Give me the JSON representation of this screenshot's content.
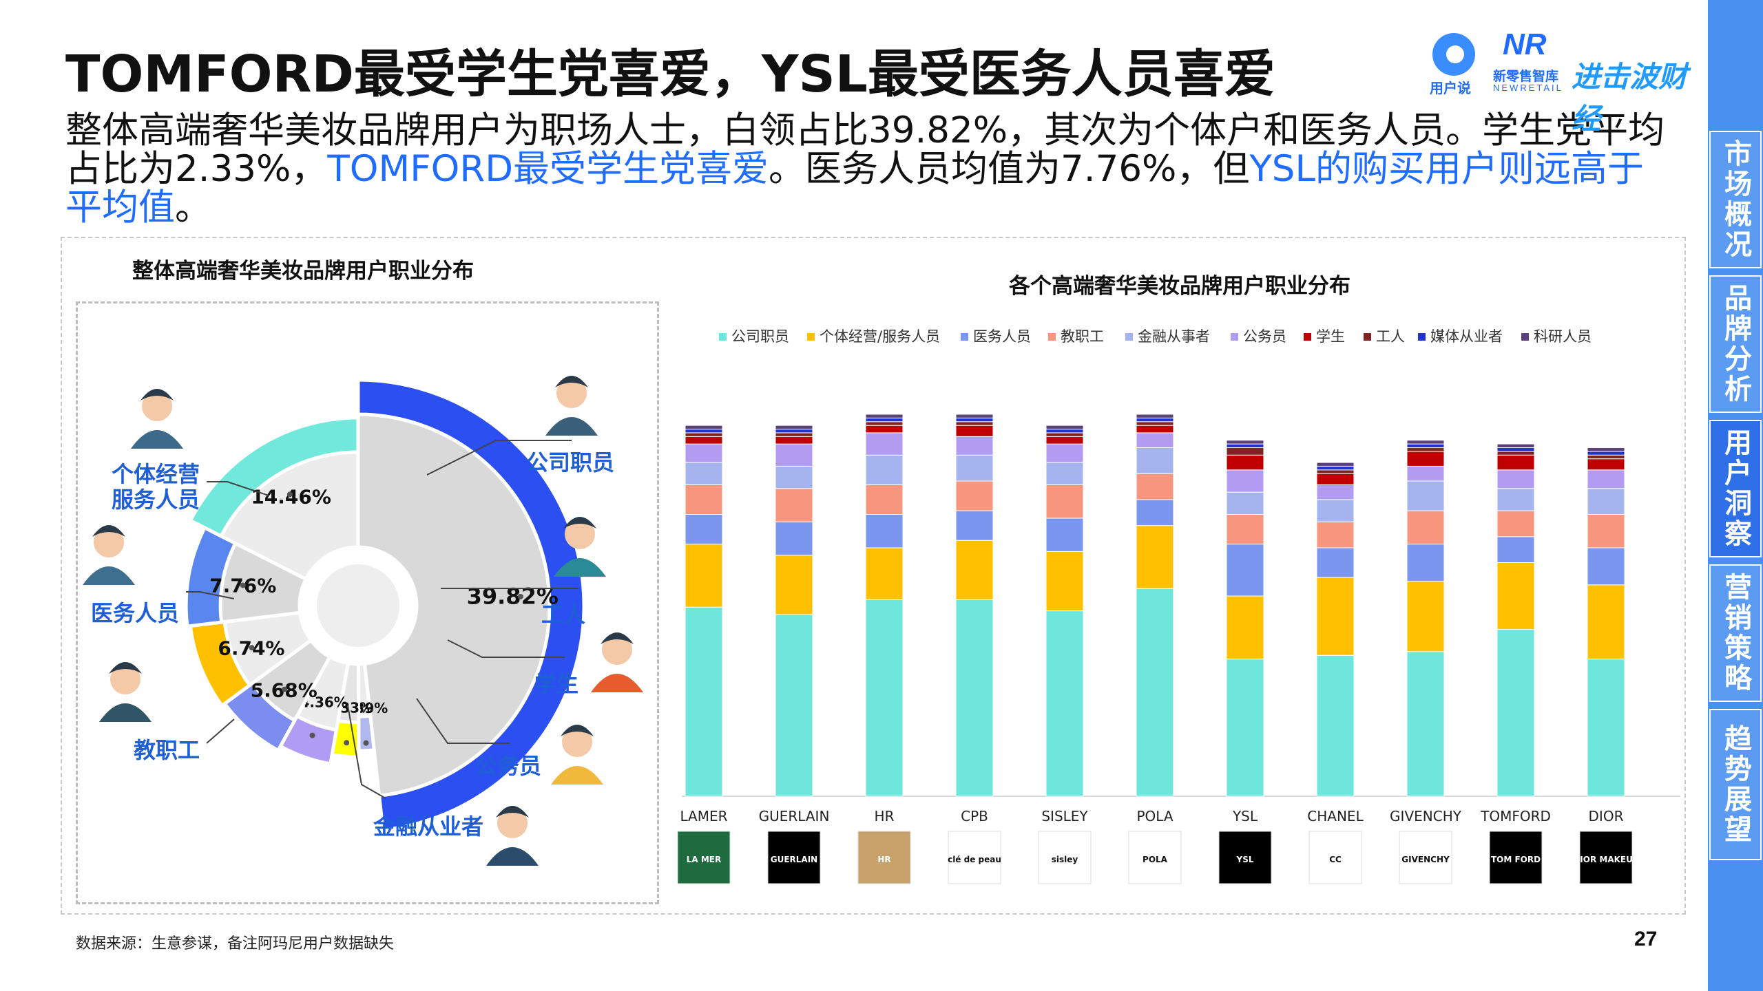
{
  "title": "TOMFORD最受学生党喜爱，YSL最受医务人员喜爱",
  "subtitle": {
    "p1": "整体高端奢华美妆品牌用户为职场人士，白领占比39.82%，其次为个体户和医务人员。学生党平均占比为2.33%，",
    "h1": "TOMFORD最受学生党喜爱",
    "p2": "。医务人员均值为7.76%，但",
    "h2": "YSL的购买用户则远高于平均值",
    "p3": "。"
  },
  "logos": {
    "l1": "用户说",
    "l2": "新零售智库",
    "l2b": "NEWRETAIL",
    "l3": "进击波财经"
  },
  "sidebar": [
    "市场概况",
    "品牌分析",
    "用户洞察",
    "营销策略",
    "趋势展望"
  ],
  "footer": "数据来源：生意参谋，备注阿玛尼用户数据缺失",
  "page_number": "27",
  "colors": {
    "公司职员": "#6ee6dc",
    "个体经营/服务人员": "#ffc000",
    "医务人员": "#7b96ee",
    "教职工": "#f7957d",
    "金融从事者": "#a5b4ef",
    "公务员": "#b19cf2",
    "学生": "#c00000",
    "工人": "#7f2323",
    "媒体从业者": "#2233cc",
    "科研人员": "#5a3f7a"
  },
  "chart_data": [
    {
      "type": "pie",
      "title": "整体高端奢华美妆品牌用户职业分布",
      "slices": [
        {
          "name": "公司职员",
          "value": 39.82,
          "label": "39.82%",
          "ring_color": "#2b4ff0",
          "fill": "#d9d9d9"
        },
        {
          "name": "工人",
          "value": 1.39,
          "label": "1.39%",
          "ring_color": "#b0b8f0",
          "fill": "#ececec"
        },
        {
          "name": "学生",
          "value": 2.33,
          "label": "2.33%",
          "ring_color": "#ffff00",
          "fill": "#e4e4e4"
        },
        {
          "name": "公务员",
          "value": 4.36,
          "label": "4.36%",
          "ring_color": "#b09cf2",
          "fill": "#ececec"
        },
        {
          "name": "金融从业者",
          "value": 5.68,
          "label": "5.68%",
          "ring_color": "#7b8ef0",
          "fill": "#d9d9d9"
        },
        {
          "name": "教职工",
          "value": 6.74,
          "label": "6.74%",
          "ring_color": "#ffc000",
          "fill": "#ececec"
        },
        {
          "name": "医务人员",
          "value": 7.76,
          "label": "7.76%",
          "ring_color": "#5a86f0",
          "fill": "#d9d9d9"
        },
        {
          "name": "个体经营服务人员",
          "value": 14.46,
          "label": "14.46%",
          "ring_color": "#70e8dc",
          "fill": "#ececec"
        }
      ],
      "callouts": [
        "公司职员",
        "工人",
        "学生",
        "公务员",
        "金融从业者",
        "教职工",
        "医务人员",
        "个体经营",
        "服务人员"
      ]
    },
    {
      "type": "bar",
      "stacked": true,
      "title": "各个高端奢华美妆品牌用户职业分布",
      "legend": [
        "公司职员",
        "个体经营/服务人员",
        "医务人员",
        "教职工",
        "金融从事者",
        "公务员",
        "学生",
        "工人",
        "媒体从业者",
        "科研人员"
      ],
      "legend_position": "top",
      "categories": [
        "LAMER",
        "GUERLAIN",
        "HR",
        "CPB",
        "SISLEY",
        "POLA",
        "YSL",
        "CHANEL",
        "GIVENCHY",
        "TOMFORD",
        "DIOR"
      ],
      "brand_logos": [
        "LA MER",
        "GUERLAIN",
        "HR",
        "clé de peau",
        "sisley",
        "POLA",
        "YSL",
        "CC",
        "GIVENCHY",
        "TOM FORD",
        "DIOR MAKEUP"
      ],
      "ylim": [
        0,
        100
      ],
      "series": [
        {
          "name": "公司职员",
          "values": [
            51,
            49,
            53,
            53,
            50,
            56,
            37,
            38,
            39,
            45,
            37
          ]
        },
        {
          "name": "个体经营/服务人员",
          "values": [
            17,
            16,
            14,
            16,
            16,
            17,
            17,
            21,
            19,
            18,
            20
          ]
        },
        {
          "name": "医务人员",
          "values": [
            8,
            9,
            9,
            8,
            9,
            7,
            14,
            8,
            10,
            7,
            10
          ]
        },
        {
          "name": "教职工",
          "values": [
            8,
            9,
            8,
            8,
            9,
            7,
            8,
            7,
            9,
            7,
            9
          ]
        },
        {
          "name": "金融从事者",
          "values": [
            6,
            6,
            8,
            7,
            6,
            7,
            6,
            6,
            8,
            6,
            7
          ]
        },
        {
          "name": "公务员",
          "values": [
            5,
            6,
            6,
            5,
            5,
            4,
            6,
            4,
            4,
            5,
            5
          ]
        },
        {
          "name": "学生",
          "values": [
            2,
            2,
            2,
            3,
            2,
            2,
            4,
            3,
            4,
            4,
            3
          ]
        },
        {
          "name": "工人",
          "values": [
            1,
            1,
            1,
            1,
            1,
            1,
            2,
            1,
            1,
            1,
            1
          ]
        },
        {
          "name": "媒体从业者",
          "values": [
            1,
            1,
            1,
            1,
            1,
            1,
            1,
            1,
            1,
            1,
            1
          ]
        },
        {
          "name": "科研人员",
          "values": [
            1,
            1,
            1,
            1,
            1,
            1,
            1,
            1,
            1,
            1,
            1
          ]
        }
      ]
    }
  ]
}
